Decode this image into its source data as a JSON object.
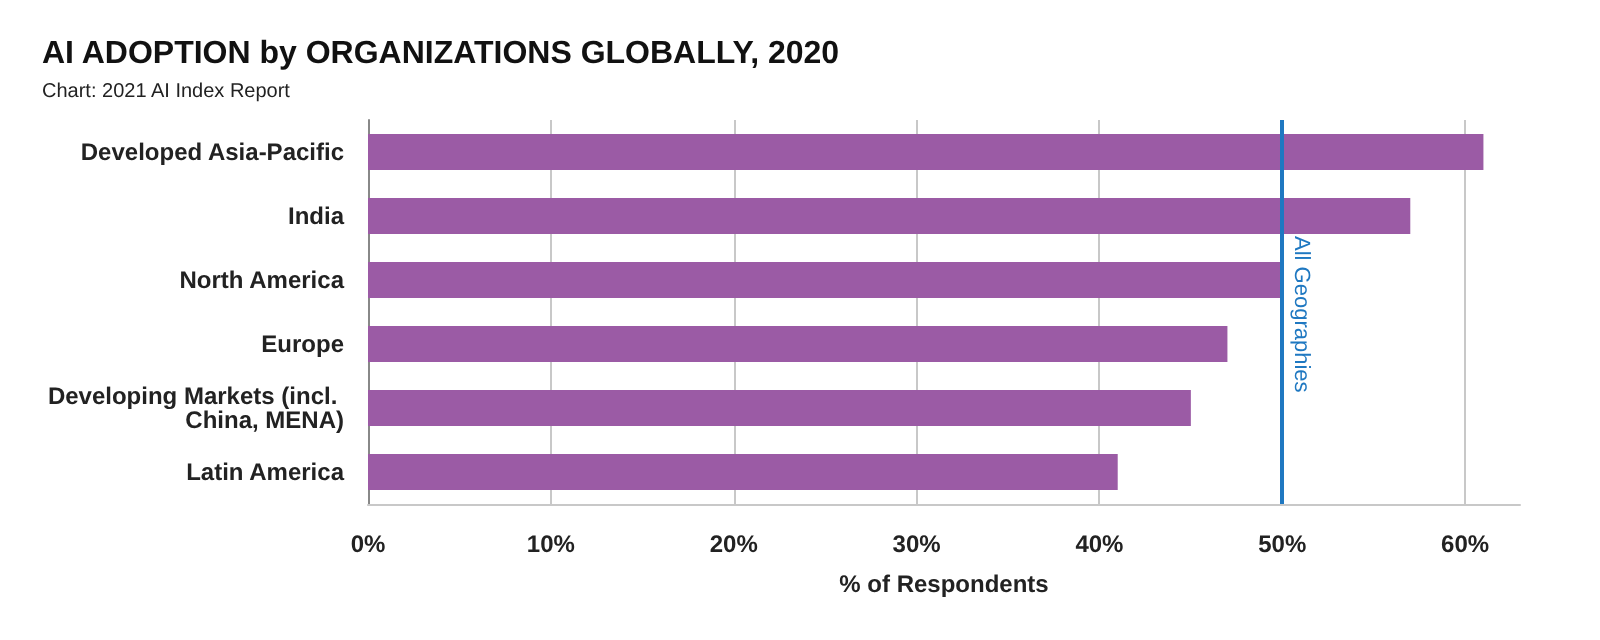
{
  "chart_data": {
    "type": "bar",
    "orientation": "horizontal",
    "title": "AI ADOPTION by ORGANIZATIONS GLOBALLY, 2020",
    "annotations": [
      "Chart: 2021 AI Index Report"
    ],
    "xlabel": "% of Respondents",
    "categories": [
      "Developed Asia-Pacific",
      "India",
      "North America",
      "Europe",
      "Developing Markets (incl. China, MENA)",
      "Latin America"
    ],
    "values": [
      61,
      57,
      50,
      47,
      45,
      41
    ],
    "color": "#9b5ba5",
    "xlim": [
      0,
      63
    ],
    "xticks": [
      {
        "value": 0,
        "label": "0%"
      },
      {
        "value": 10,
        "label": "10%"
      },
      {
        "value": 20,
        "label": "20%"
      },
      {
        "value": 30,
        "label": "30%"
      },
      {
        "value": 40,
        "label": "40%"
      },
      {
        "value": 50,
        "label": "50%"
      },
      {
        "value": 60,
        "label": "60%"
      }
    ],
    "ref_lines": [
      {
        "axis": "x",
        "value": 50,
        "label": "All Geographies",
        "color": "#1f78c1"
      }
    ],
    "grid": "x"
  }
}
